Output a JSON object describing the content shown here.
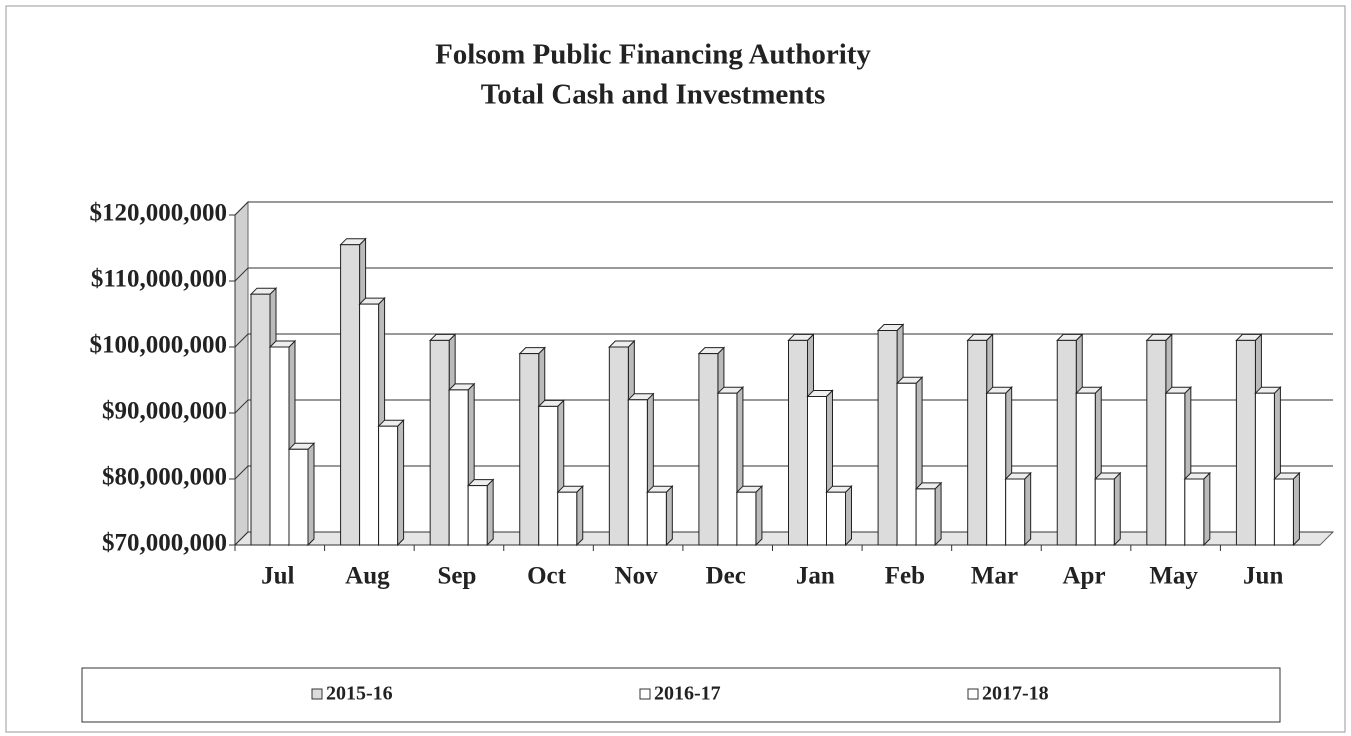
{
  "chart_data": {
    "type": "bar3d",
    "title": "Folsom Public Financing Authority",
    "subtitle": "Total Cash and Investments",
    "categories": [
      "Jul",
      "Aug",
      "Sep",
      "Oct",
      "Nov",
      "Dec",
      "Jan",
      "Feb",
      "Mar",
      "Apr",
      "May",
      "Jun"
    ],
    "series": [
      {
        "name": "2015-16",
        "color": "#dcdcdc",
        "values": [
          108000000,
          115500000,
          101000000,
          99000000,
          100000000,
          99000000,
          101000000,
          102500000,
          101000000,
          101000000,
          101000000,
          101000000
        ]
      },
      {
        "name": "2016-17",
        "color": "#ffffff",
        "values": [
          100000000,
          106500000,
          93500000,
          91000000,
          92000000,
          93000000,
          92500000,
          94500000,
          93000000,
          93000000,
          93000000,
          93000000
        ]
      },
      {
        "name": "2017-18",
        "color": "#ffffff",
        "values": [
          84500000,
          88000000,
          79000000,
          78000000,
          78000000,
          78000000,
          78000000,
          78500000,
          80000000,
          80000000,
          80000000,
          80000000
        ]
      }
    ],
    "ylim": [
      70000000,
      120000000
    ],
    "yticks": [
      {
        "value": 70000000,
        "label": "$70,000,000"
      },
      {
        "value": 80000000,
        "label": "$80,000,000"
      },
      {
        "value": 90000000,
        "label": "$90,000,000"
      },
      {
        "value": 100000000,
        "label": "$100,000,000"
      },
      {
        "value": 110000000,
        "label": "$110,000,000"
      },
      {
        "value": 120000000,
        "label": "$120,000,000"
      }
    ],
    "grid": true,
    "legend": "bottom"
  }
}
